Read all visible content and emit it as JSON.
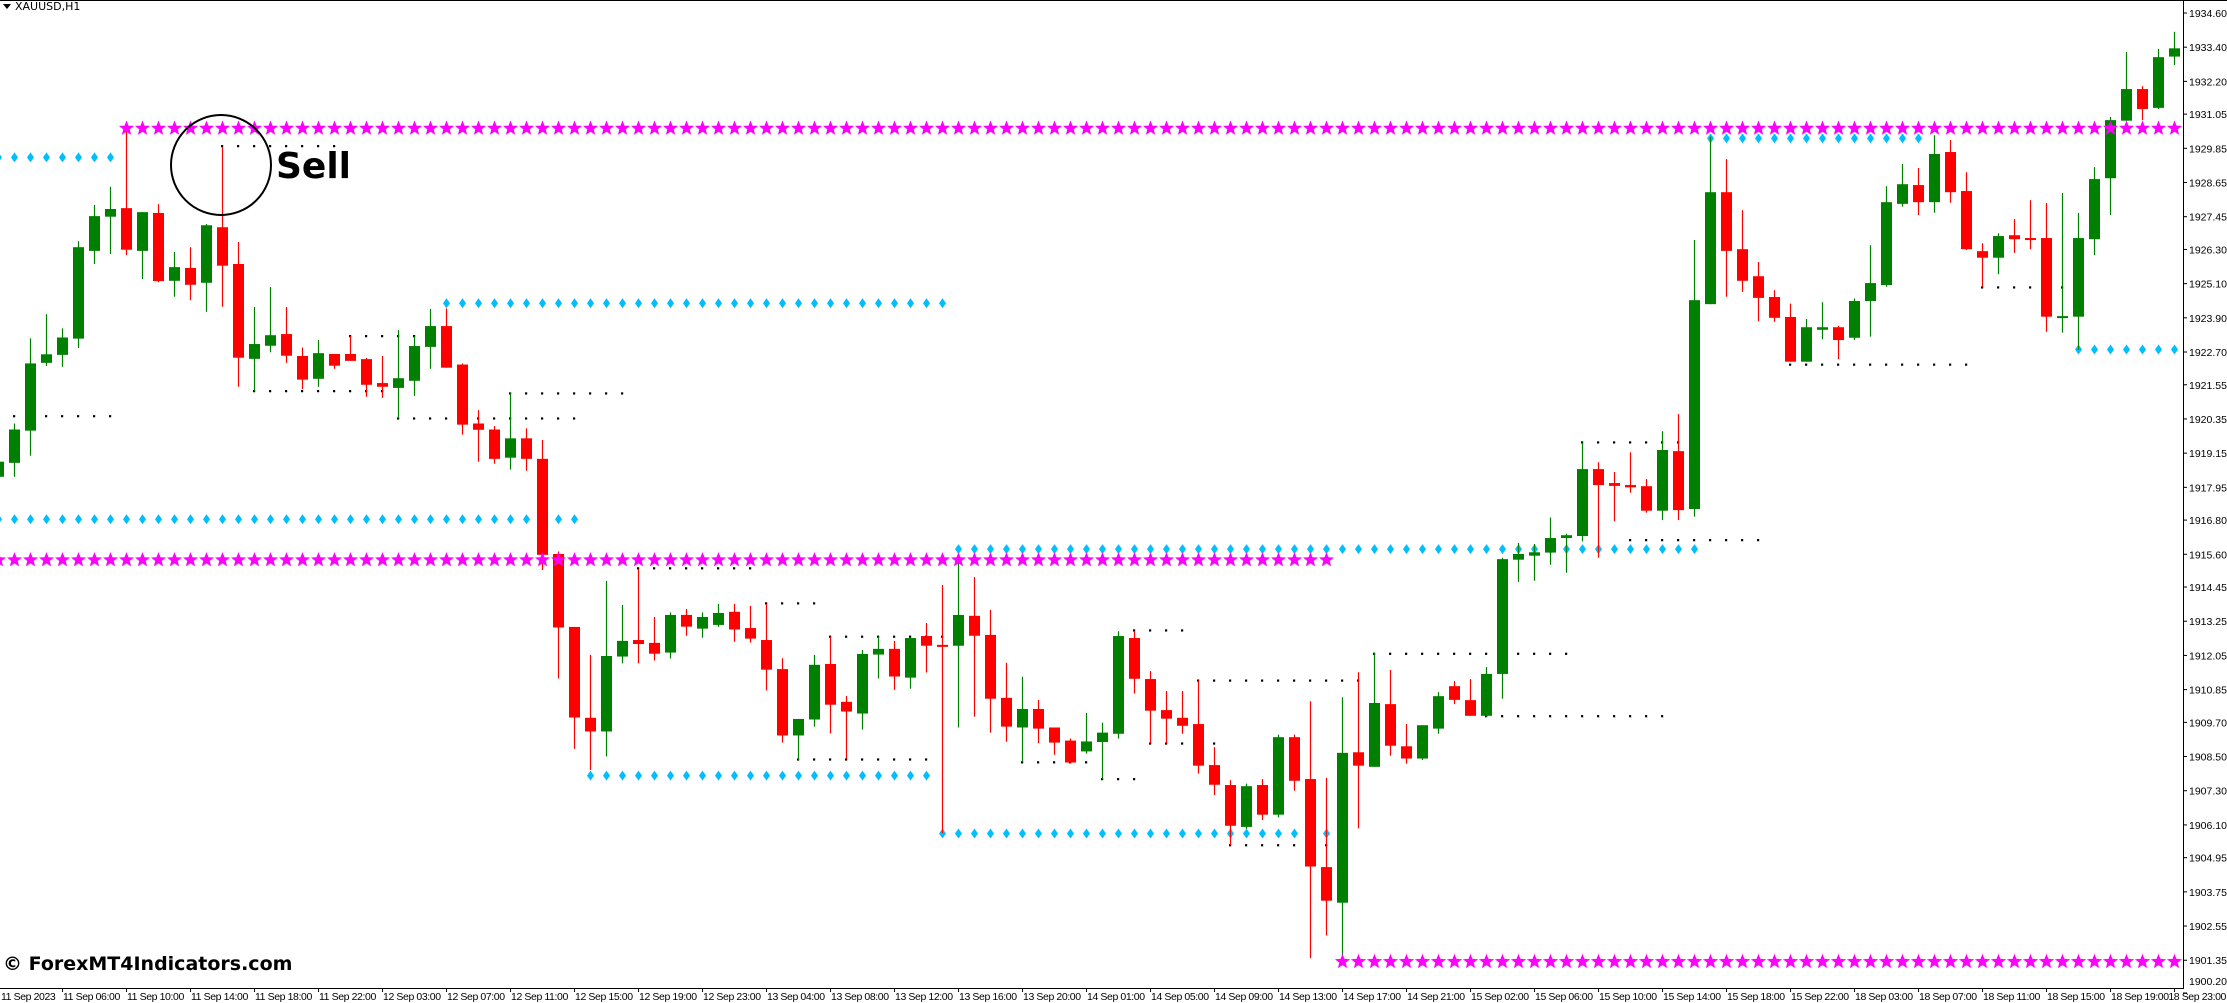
{
  "window": {
    "symbol_title": "XAUUSD,H1"
  },
  "annotation": {
    "label": "Sell"
  },
  "watermark": "© ForexMT4Indicators.com",
  "colors": {
    "bull": "#008000",
    "bear": "#ff0000",
    "star_level": "#ff00ff",
    "diamond_level": "#00bfff",
    "dots": "#000000",
    "axis": "#000000",
    "background": "#ffffff"
  },
  "chart_data": {
    "type": "candlestick",
    "symbol": "XAUUSD",
    "timeframe": "H1",
    "ylim": [
      1900.2,
      1934.6
    ],
    "y_tick_labels": [
      "1934.60",
      "1933.40",
      "1932.20",
      "1931.05",
      "1929.85",
      "1928.65",
      "1927.45",
      "1926.30",
      "1925.10",
      "1923.90",
      "1922.70",
      "1921.55",
      "1920.35",
      "1919.15",
      "1917.95",
      "1916.80",
      "1915.60",
      "1914.45",
      "1913.25",
      "1912.05",
      "1910.85",
      "1909.70",
      "1908.50",
      "1907.30",
      "1906.10",
      "1904.95",
      "1903.75",
      "1902.55",
      "1901.35",
      "1900.20"
    ],
    "x_tick_labels": [
      "11 Sep 2023",
      "11 Sep 06:00",
      "11 Sep 10:00",
      "11 Sep 14:00",
      "11 Sep 18:00",
      "11 Sep 22:00",
      "12 Sep 03:00",
      "12 Sep 07:00",
      "12 Sep 11:00",
      "12 Sep 15:00",
      "12 Sep 19:00",
      "12 Sep 23:00",
      "13 Sep 04:00",
      "13 Sep 08:00",
      "13 Sep 12:00",
      "13 Sep 16:00",
      "13 Sep 20:00",
      "14 Sep 01:00",
      "14 Sep 05:00",
      "14 Sep 09:00",
      "14 Sep 13:00",
      "14 Sep 17:00",
      "14 Sep 21:00",
      "15 Sep 02:00",
      "15 Sep 06:00",
      "15 Sep 10:00",
      "15 Sep 14:00",
      "15 Sep 18:00",
      "15 Sep 22:00",
      "18 Sep 03:00",
      "18 Sep 07:00",
      "18 Sep 11:00",
      "18 Sep 15:00",
      "18 Sep 19:00",
      "18 Sep 23:00"
    ],
    "x_tick_every_bars": 4,
    "ohlc_fields": [
      "open",
      "high",
      "low",
      "close"
    ],
    "candles": [
      [
        1918.32,
        1918.85,
        1918.32,
        1918.85
      ],
      [
        1918.81,
        1920.19,
        1918.32,
        1919.98
      ],
      [
        1919.94,
        1923.18,
        1919.06,
        1922.3
      ],
      [
        1922.32,
        1924.03,
        1922.21,
        1922.62
      ],
      [
        1922.6,
        1923.53,
        1922.18,
        1923.21
      ],
      [
        1923.17,
        1926.59,
        1922.84,
        1926.38
      ],
      [
        1926.25,
        1927.86,
        1925.79,
        1927.47
      ],
      [
        1927.45,
        1928.5,
        1926.14,
        1927.72
      ],
      [
        1927.75,
        1930.43,
        1926.1,
        1926.29
      ],
      [
        1926.25,
        1927.61,
        1925.26,
        1927.61
      ],
      [
        1927.58,
        1927.89,
        1925.15,
        1925.19
      ],
      [
        1925.2,
        1926.21,
        1924.64,
        1925.68
      ],
      [
        1925.65,
        1926.38,
        1924.52,
        1925.06
      ],
      [
        1925.13,
        1927.19,
        1924.11,
        1927.15
      ],
      [
        1927.08,
        1929.9,
        1924.29,
        1925.73
      ],
      [
        1925.79,
        1926.56,
        1921.48,
        1922.5
      ],
      [
        1922.46,
        1924.28,
        1921.32,
        1922.98
      ],
      [
        1922.92,
        1924.98,
        1922.69,
        1923.29
      ],
      [
        1923.33,
        1924.28,
        1922.32,
        1922.57
      ],
      [
        1922.56,
        1922.86,
        1921.4,
        1921.73
      ],
      [
        1921.76,
        1923.12,
        1921.48,
        1922.66
      ],
      [
        1922.63,
        1922.63,
        1922.11,
        1922.22
      ],
      [
        1922.63,
        1923.26,
        1922.39,
        1922.39
      ],
      [
        1922.45,
        1922.49,
        1921.13,
        1921.55
      ],
      [
        1921.61,
        1922.56,
        1921.09,
        1921.48
      ],
      [
        1921.44,
        1923.47,
        1920.37,
        1921.78
      ],
      [
        1921.69,
        1923.26,
        1921.16,
        1922.91
      ],
      [
        1922.88,
        1924.21,
        1922.11,
        1923.61
      ],
      [
        1923.61,
        1924.23,
        1922.15,
        1922.15
      ],
      [
        1922.26,
        1922.3,
        1919.8,
        1920.15
      ],
      [
        1920.19,
        1920.66,
        1918.85,
        1919.97
      ],
      [
        1919.98,
        1920.1,
        1918.78,
        1918.95
      ],
      [
        1918.99,
        1921.27,
        1918.57,
        1919.67
      ],
      [
        1919.67,
        1920.02,
        1918.53,
        1918.95
      ],
      [
        1918.95,
        1919.61,
        1915.05,
        1915.58
      ],
      [
        1915.61,
        1915.7,
        1911.24,
        1913.03
      ],
      [
        1913.05,
        1913.05,
        1908.77,
        1909.87
      ],
      [
        1909.86,
        1912.07,
        1908.03,
        1909.38
      ],
      [
        1909.38,
        1914.66,
        1908.5,
        1912.03
      ],
      [
        1912.01,
        1913.82,
        1911.77,
        1912.56
      ],
      [
        1912.59,
        1915.09,
        1911.77,
        1912.45
      ],
      [
        1912.49,
        1913.4,
        1911.87,
        1912.11
      ],
      [
        1912.15,
        1913.56,
        1911.94,
        1913.47
      ],
      [
        1913.47,
        1913.68,
        1912.74,
        1913.06
      ],
      [
        1912.99,
        1913.56,
        1912.67,
        1913.4
      ],
      [
        1913.12,
        1913.86,
        1913.05,
        1913.54
      ],
      [
        1913.58,
        1913.86,
        1912.53,
        1912.96
      ],
      [
        1913.01,
        1913.79,
        1912.5,
        1912.64
      ],
      [
        1912.59,
        1913.86,
        1910.82,
        1911.55
      ],
      [
        1911.57,
        1911.95,
        1908.99,
        1909.24
      ],
      [
        1909.24,
        1909.82,
        1908.38,
        1909.82
      ],
      [
        1909.8,
        1912.07,
        1909.55,
        1911.72
      ],
      [
        1911.75,
        1912.71,
        1909.31,
        1910.32
      ],
      [
        1910.42,
        1910.63,
        1908.42,
        1910.08
      ],
      [
        1910.01,
        1912.24,
        1909.45,
        1912.1
      ],
      [
        1912.08,
        1912.71,
        1911.24,
        1912.28
      ],
      [
        1912.28,
        1912.56,
        1910.84,
        1911.31
      ],
      [
        1911.27,
        1912.66,
        1910.88,
        1912.66
      ],
      [
        1912.73,
        1913.19,
        1911.45,
        1912.39
      ],
      [
        1912.42,
        1914.52,
        1905.81,
        1912.36
      ],
      [
        1912.39,
        1915.28,
        1909.52,
        1913.47
      ],
      [
        1913.44,
        1914.8,
        1909.9,
        1912.74
      ],
      [
        1912.77,
        1913.65,
        1909.34,
        1910.53
      ],
      [
        1910.56,
        1911.79,
        1909.02,
        1909.55
      ],
      [
        1909.52,
        1911.3,
        1908.31,
        1910.17
      ],
      [
        1910.17,
        1910.49,
        1908.97,
        1909.48
      ],
      [
        1909.52,
        1909.52,
        1908.56,
        1908.99
      ],
      [
        1909.06,
        1909.13,
        1908.26,
        1908.29
      ],
      [
        1908.68,
        1910.03,
        1908.6,
        1909.03
      ],
      [
        1909.01,
        1909.69,
        1907.71,
        1909.34
      ],
      [
        1909.3,
        1912.9,
        1909.13,
        1912.73
      ],
      [
        1912.66,
        1912.91,
        1910.71,
        1911.23
      ],
      [
        1911.22,
        1911.5,
        1908.95,
        1910.11
      ],
      [
        1910.13,
        1910.8,
        1908.95,
        1909.83
      ],
      [
        1909.86,
        1910.8,
        1909.3,
        1909.58
      ],
      [
        1909.64,
        1911.18,
        1907.9,
        1908.18
      ],
      [
        1908.2,
        1908.83,
        1907.15,
        1907.51
      ],
      [
        1907.5,
        1907.67,
        1905.39,
        1906.07
      ],
      [
        1906.03,
        1907.55,
        1905.96,
        1907.46
      ],
      [
        1907.5,
        1907.71,
        1906.27,
        1906.46
      ],
      [
        1906.46,
        1909.27,
        1906.37,
        1909.18
      ],
      [
        1909.18,
        1909.27,
        1907.3,
        1907.65
      ],
      [
        1907.71,
        1910.44,
        1901.42,
        1904.64
      ],
      [
        1904.62,
        1907.75,
        1902.22,
        1903.44
      ],
      [
        1903.37,
        1910.58,
        1901.51,
        1908.63
      ],
      [
        1908.65,
        1911.46,
        1905.98,
        1908.18
      ],
      [
        1908.14,
        1912.15,
        1908.14,
        1910.38
      ],
      [
        1910.34,
        1911.54,
        1908.53,
        1908.88
      ],
      [
        1908.86,
        1909.64,
        1908.25,
        1908.43
      ],
      [
        1908.43,
        1909.6,
        1908.38,
        1909.6
      ],
      [
        1909.48,
        1910.76,
        1909.3,
        1910.62
      ],
      [
        1910.97,
        1911.15,
        1910.34,
        1910.49
      ],
      [
        1910.48,
        1911.22,
        1909.93,
        1909.93
      ],
      [
        1909.93,
        1911.64,
        1909.9,
        1911.4
      ],
      [
        1911.4,
        1915.48,
        1910.53,
        1915.43
      ],
      [
        1915.41,
        1916.0,
        1914.63,
        1915.61
      ],
      [
        1915.55,
        1915.96,
        1914.67,
        1915.67
      ],
      [
        1915.66,
        1916.89,
        1915.23,
        1916.17
      ],
      [
        1916.17,
        1916.32,
        1914.95,
        1916.27
      ],
      [
        1916.24,
        1919.53,
        1916.05,
        1918.59
      ],
      [
        1918.59,
        1918.83,
        1915.48,
        1918.03
      ],
      [
        1918.1,
        1918.49,
        1916.76,
        1918.0
      ],
      [
        1918.03,
        1919.18,
        1917.76,
        1917.95
      ],
      [
        1917.99,
        1918.24,
        1917.06,
        1917.13
      ],
      [
        1917.13,
        1919.92,
        1916.8,
        1919.26
      ],
      [
        1919.22,
        1920.52,
        1916.8,
        1917.15
      ],
      [
        1917.19,
        1926.63,
        1916.92,
        1924.52
      ],
      [
        1924.38,
        1930.26,
        1924.38,
        1928.31
      ],
      [
        1928.31,
        1929.47,
        1924.64,
        1926.25
      ],
      [
        1926.31,
        1927.68,
        1924.81,
        1925.2
      ],
      [
        1925.36,
        1925.86,
        1923.78,
        1924.6
      ],
      [
        1924.63,
        1924.87,
        1923.76,
        1923.9
      ],
      [
        1923.93,
        1924.4,
        1922.36,
        1922.36
      ],
      [
        1922.36,
        1923.86,
        1922.36,
        1923.57
      ],
      [
        1923.48,
        1924.45,
        1923.15,
        1923.57
      ],
      [
        1923.57,
        1923.62,
        1922.45,
        1923.12
      ],
      [
        1923.2,
        1924.58,
        1923.12,
        1924.49
      ],
      [
        1924.49,
        1926.45,
        1923.24,
        1925.12
      ],
      [
        1925.05,
        1928.52,
        1924.99,
        1927.96
      ],
      [
        1927.9,
        1929.3,
        1927.8,
        1928.59
      ],
      [
        1928.56,
        1929.16,
        1927.51,
        1927.96
      ],
      [
        1927.96,
        1930.31,
        1927.59,
        1929.65
      ],
      [
        1929.72,
        1930.14,
        1927.94,
        1928.31
      ],
      [
        1928.35,
        1929.01,
        1926.28,
        1926.31
      ],
      [
        1926.24,
        1926.52,
        1924.99,
        1926.01
      ],
      [
        1926.01,
        1926.87,
        1925.43,
        1926.77
      ],
      [
        1926.8,
        1927.37,
        1926.18,
        1926.66
      ],
      [
        1926.7,
        1928.03,
        1926.31,
        1926.66
      ],
      [
        1926.7,
        1927.93,
        1923.41,
        1923.94
      ],
      [
        1923.91,
        1928.28,
        1923.38,
        1923.96
      ],
      [
        1923.94,
        1927.58,
        1922.77,
        1926.7
      ],
      [
        1926.66,
        1929.19,
        1926.1,
        1928.77
      ],
      [
        1928.8,
        1930.95,
        1927.51,
        1930.84
      ],
      [
        1930.82,
        1933.23,
        1930.82,
        1931.93
      ],
      [
        1931.93,
        1932.03,
        1930.84,
        1931.23
      ],
      [
        1931.27,
        1933.34,
        1931.23,
        1933.05
      ],
      [
        1933.07,
        1933.94,
        1932.77,
        1933.36
      ]
    ],
    "star_levels": [
      {
        "price": 1930.55,
        "from_bar": 8,
        "to_bar": 136
      },
      {
        "price": 1915.4,
        "from_bar": 0,
        "to_bar": 83
      },
      {
        "price": 1901.3,
        "from_bar": 84,
        "to_bar": 136
      }
    ],
    "diamond_levels": [
      {
        "price": 1929.53,
        "from_bar": 0,
        "to_bar": 7
      },
      {
        "price": 1924.41,
        "from_bar": 28,
        "to_bar": 59
      },
      {
        "price": 1916.83,
        "from_bar": 0,
        "to_bar": 36
      },
      {
        "price": 1907.83,
        "from_bar": 37,
        "to_bar": 58
      },
      {
        "price": 1905.8,
        "from_bar": 59,
        "to_bar": 83
      },
      {
        "price": 1915.78,
        "from_bar": 60,
        "to_bar": 106
      },
      {
        "price": 1930.2,
        "from_bar": 107,
        "to_bar": 120
      },
      {
        "price": 1922.79,
        "from_bar": 130,
        "to_bar": 136
      }
    ],
    "dot_levels": [
      {
        "price": 1920.45,
        "from_bar": 1,
        "to_bar": 7
      },
      {
        "price": 1929.93,
        "from_bar": 14,
        "to_bar": 21
      },
      {
        "price": 1921.33,
        "from_bar": 16,
        "to_bar": 24
      },
      {
        "price": 1923.26,
        "from_bar": 22,
        "to_bar": 27
      },
      {
        "price": 1920.37,
        "from_bar": 25,
        "to_bar": 36
      },
      {
        "price": 1921.25,
        "from_bar": 32,
        "to_bar": 39
      },
      {
        "price": 1915.11,
        "from_bar": 40,
        "to_bar": 47
      },
      {
        "price": 1913.88,
        "from_bar": 48,
        "to_bar": 51
      },
      {
        "price": 1912.71,
        "from_bar": 52,
        "to_bar": 59
      },
      {
        "price": 1908.4,
        "from_bar": 50,
        "to_bar": 58
      },
      {
        "price": 1908.3,
        "from_bar": 64,
        "to_bar": 68
      },
      {
        "price": 1907.71,
        "from_bar": 69,
        "to_bar": 71
      },
      {
        "price": 1912.93,
        "from_bar": 71,
        "to_bar": 74
      },
      {
        "price": 1908.96,
        "from_bar": 72,
        "to_bar": 76
      },
      {
        "price": 1911.17,
        "from_bar": 75,
        "to_bar": 85
      },
      {
        "price": 1905.39,
        "from_bar": 77,
        "to_bar": 83
      },
      {
        "price": 1912.11,
        "from_bar": 86,
        "to_bar": 98
      },
      {
        "price": 1909.92,
        "from_bar": 93,
        "to_bar": 104
      },
      {
        "price": 1919.53,
        "from_bar": 99,
        "to_bar": 106
      },
      {
        "price": 1916.1,
        "from_bar": 102,
        "to_bar": 110
      },
      {
        "price": 1922.26,
        "from_bar": 112,
        "to_bar": 123
      },
      {
        "price": 1924.97,
        "from_bar": 124,
        "to_bar": 129
      }
    ],
    "sell_signal_bar": 14
  }
}
